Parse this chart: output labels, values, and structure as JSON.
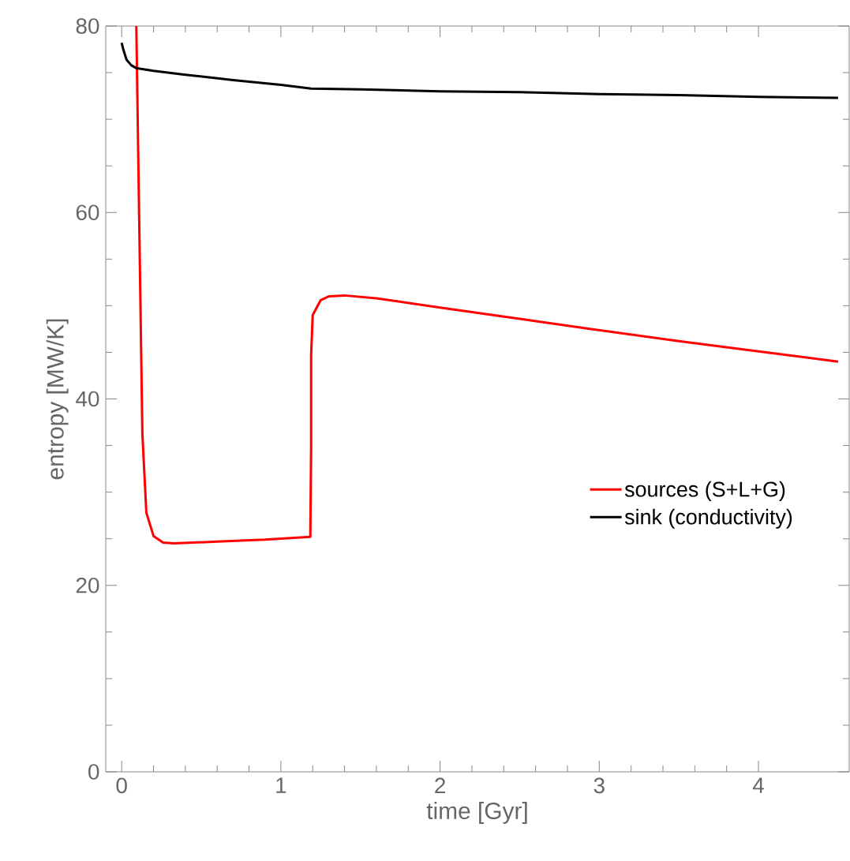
{
  "chart_data": {
    "type": "line",
    "xlabel": "time [Gyr]",
    "ylabel": "entropy [MW/K]",
    "xlim": [
      -0.1,
      4.57
    ],
    "ylim": [
      0,
      80
    ],
    "xticks": [
      0,
      1,
      2,
      3,
      4
    ],
    "yticks": [
      0,
      20,
      40,
      60,
      80
    ],
    "grid": false,
    "legend": "right",
    "marker": "none",
    "line_style": "solid",
    "series": [
      {
        "name": "sources (S+L+G)",
        "color": "#ff0000",
        "x": [
          0.092,
          0.13,
          0.155,
          0.2,
          0.26,
          0.33,
          0.6,
          0.9,
          1.185,
          1.19,
          1.19,
          1.2,
          1.25,
          1.3,
          1.4,
          1.6,
          2.0,
          2.5,
          2.95,
          3.5,
          4.0,
          4.5
        ],
        "values": [
          80,
          36.3,
          27.8,
          25.3,
          24.6,
          24.5,
          24.7,
          24.9,
          25.2,
          35,
          44.7,
          49,
          50.6,
          51.0,
          51.1,
          50.8,
          49.8,
          48.6,
          47.5,
          46.2,
          45.1,
          44.0
        ]
      },
      {
        "name": "sink (conductivity)",
        "color": "#000000",
        "x": [
          0,
          0.01,
          0.03,
          0.06,
          0.09,
          0.2,
          0.39,
          0.7,
          1.0,
          1.19,
          1.5,
          2.0,
          2.5,
          3.0,
          3.5,
          4.0,
          4.5
        ],
        "values": [
          78.2,
          77.5,
          76.4,
          75.8,
          75.5,
          75.2,
          74.8,
          74.2,
          73.7,
          73.3,
          73.2,
          73.0,
          72.9,
          72.7,
          72.6,
          72.4,
          72.3
        ]
      }
    ]
  }
}
